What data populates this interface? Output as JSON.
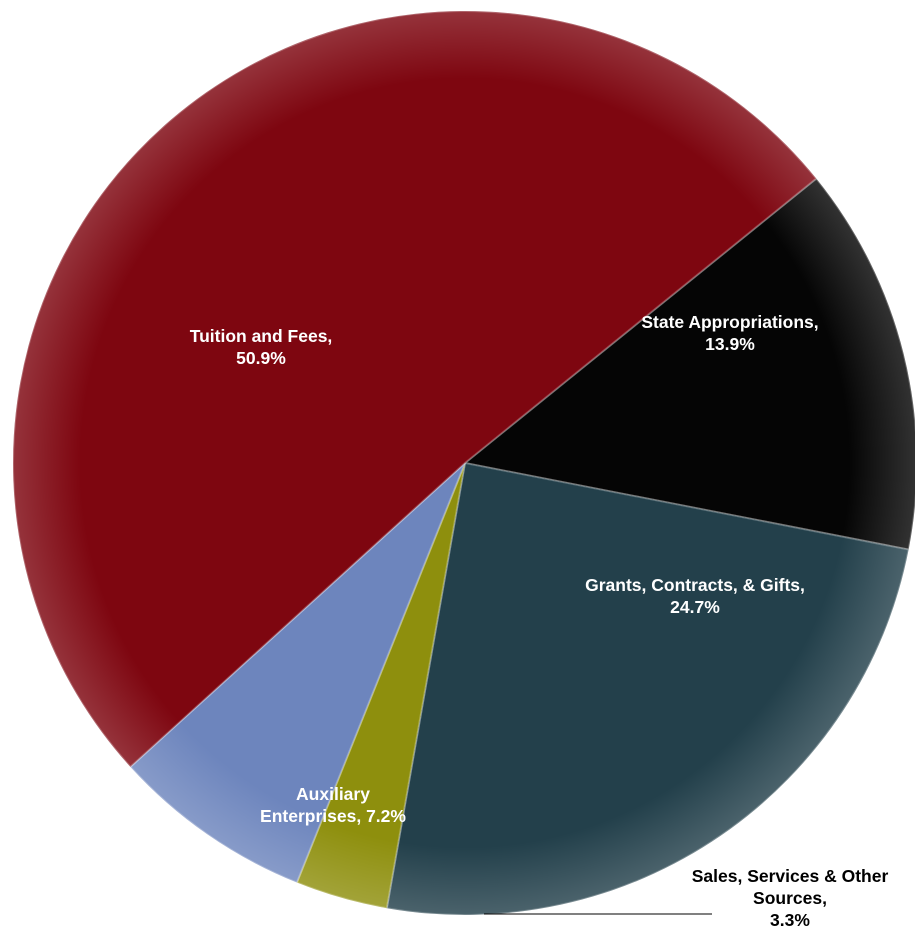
{
  "chart_data": {
    "type": "pie",
    "title": "",
    "start_angle_deg": 0,
    "direction": "clockwise-from-upper-right",
    "slices": [
      {
        "label": "State Appropriations,",
        "percent_label": "13.9%",
        "value": 13.9,
        "color": "#050505",
        "text_color": "#ffffff"
      },
      {
        "label": "Grants, Contracts, & Gifts,",
        "percent_label": "24.7%",
        "value": 24.7,
        "color": "#23404b",
        "text_color": "#ffffff"
      },
      {
        "label": "Sales, Services & Other Sources,",
        "percent_label": "3.3%",
        "value": 3.3,
        "color": "#8e8f0d",
        "text_color": "#000000"
      },
      {
        "label": "Auxiliary Enterprises, 7.2%",
        "percent_label": "",
        "value": 7.2,
        "color": "#6d85bd",
        "text_color": "#ffffff"
      },
      {
        "label": "Tuition and Fees,",
        "percent_label": "50.9%",
        "value": 50.9,
        "color": "#7e0610",
        "text_color": "#ffffff"
      }
    ]
  }
}
